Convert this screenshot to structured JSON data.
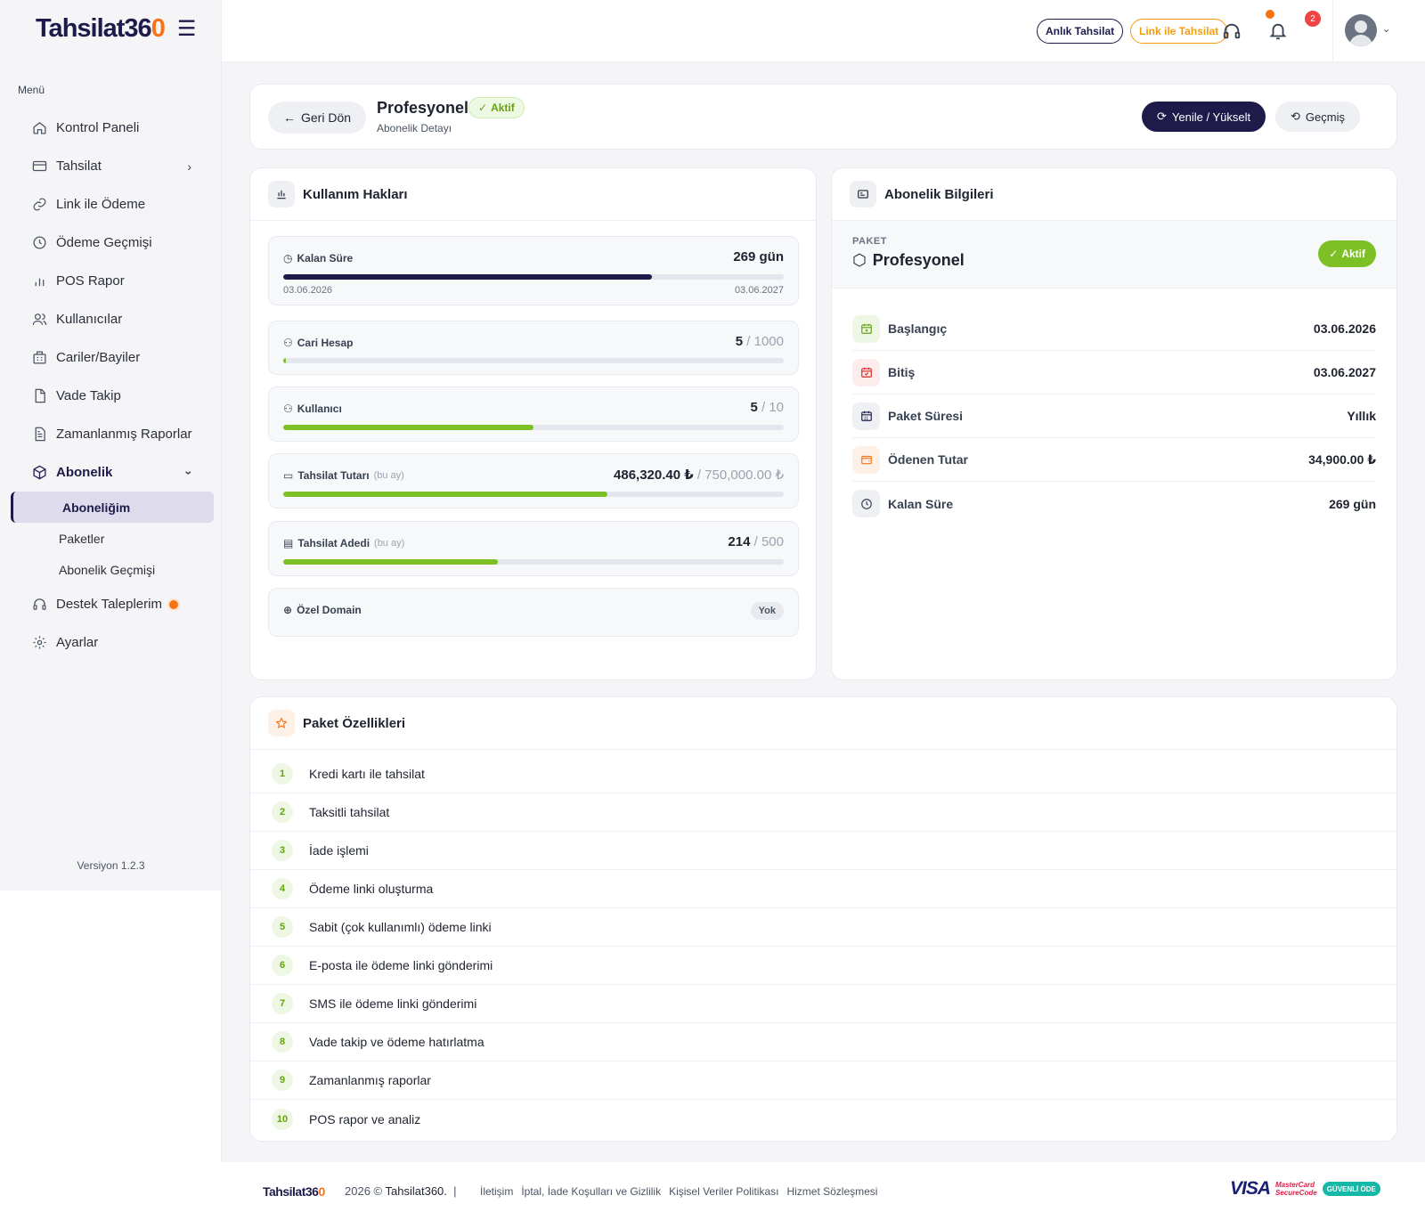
{
  "brand": {
    "logo_main": "Tahsilat36",
    "logo_accent": "0"
  },
  "sidebar": {
    "menu_heading": "Menü",
    "items": [
      {
        "label": "Kontrol Paneli",
        "icon": "home-icon"
      },
      {
        "label": "Tahsilat",
        "icon": "card-icon"
      },
      {
        "label": "Link ile Ödeme",
        "icon": "link-icon"
      },
      {
        "label": "Ödeme Geçmişi",
        "icon": "clock-icon"
      },
      {
        "label": "POS Rapor",
        "icon": "chart-icon"
      },
      {
        "label": "Kullanıcılar",
        "icon": "users-icon"
      },
      {
        "label": "Cariler/Bayiler",
        "icon": "building-icon"
      },
      {
        "label": "Vade Takip",
        "icon": "file-icon"
      },
      {
        "label": "Zamanlanmış Raporlar",
        "icon": "report-icon"
      },
      {
        "label": "Abonelik",
        "icon": "box-icon"
      },
      {
        "label": "Destek Taleplerim",
        "icon": "headset-icon"
      },
      {
        "label": "Ayarlar",
        "icon": "gear-icon"
      }
    ],
    "subitems": [
      "Aboneliğim",
      "Paketler",
      "Abonelik Geçmişi"
    ],
    "version": "Versiyon 1.2.3"
  },
  "topbar": {
    "instant_label": "Anlık Tahsilat",
    "link_label": "Link ile Tahsilat",
    "notification_count": "2"
  },
  "header": {
    "back_label": "Geri Dön",
    "title": "Profesyonel",
    "status": "Aktif",
    "subtitle": "Abonelik Detayı",
    "renew_label": "Yenile / Yükselt",
    "history_label": "Geçmiş"
  },
  "usage": {
    "title": "Kullanım Hakları",
    "remaining": {
      "label": "Kalan Süre",
      "value": "269 gün",
      "start": "03.06.2026",
      "end": "03.06.2027",
      "progress": 0.737
    },
    "cari": {
      "label": "Cari Hesap",
      "used": "5",
      "max": "/ 1000",
      "progress": 0.005
    },
    "users": {
      "label": "Kullanıcı",
      "used": "5",
      "max": "/ 10",
      "progress": 0.5
    },
    "amount": {
      "label": "Tahsilat Tutarı",
      "note": "(bu ay)",
      "used": "486,320.40 ₺",
      "max": "/ 750,000.00 ₺",
      "progress": 0.648
    },
    "count": {
      "label": "Tahsilat Adedi",
      "note": "(bu ay)",
      "used": "214",
      "max": "/ 500",
      "progress": 0.428
    },
    "domain": {
      "label": "Özel Domain",
      "value": "Yok"
    },
    "colors": {
      "dark": "#1e1b4b",
      "green": "#7cc026"
    }
  },
  "info": {
    "title": "Abonelik Bilgileri",
    "package_label": "PAKET",
    "package_name": "Profesyonel",
    "status": "Aktif",
    "rows": [
      {
        "label": "Başlangıç",
        "value": "03.06.2026"
      },
      {
        "label": "Bitiş",
        "value": "03.06.2027"
      },
      {
        "label": "Paket Süresi",
        "value": "Yıllık"
      },
      {
        "label": "Ödenen Tutar",
        "value": "34,900.00 ₺"
      },
      {
        "label": "Kalan Süre",
        "value": "269 gün"
      }
    ]
  },
  "features": {
    "title": "Paket Özellikleri",
    "items": [
      {
        "n": "1",
        "t": "Kredi kartı ile tahsilat"
      },
      {
        "n": "2",
        "t": "Taksitli tahsilat"
      },
      {
        "n": "3",
        "t": "İade işlemi"
      },
      {
        "n": "4",
        "t": "Ödeme linki oluşturma"
      },
      {
        "n": "5",
        "t": "Sabit (çok kullanımlı) ödeme linki"
      },
      {
        "n": "6",
        "t": "E-posta ile ödeme linki gönderimi"
      },
      {
        "n": "7",
        "t": "SMS ile ödeme linki gönderimi"
      },
      {
        "n": "8",
        "t": "Vade takip ve ödeme hatırlatma"
      },
      {
        "n": "9",
        "t": "Zamanlanmış raporlar"
      },
      {
        "n": "10",
        "t": "POS rapor ve analiz"
      }
    ]
  },
  "footer": {
    "logo_main": "Tahsilat36",
    "logo_accent": "0",
    "copyright": "2026 ©",
    "brand": "Tahsilat360.",
    "sep": "|",
    "links": [
      "İletişim",
      "İptal, İade Koşulları ve Gizlilik",
      "Kişisel Veriler Politikası",
      "Hizmet Sözleşmesi"
    ],
    "visa": "VISA",
    "mc_line1": "MasterCard",
    "mc_line2": "SecureCode",
    "secure": "GÜVENLİ ÖDE"
  }
}
